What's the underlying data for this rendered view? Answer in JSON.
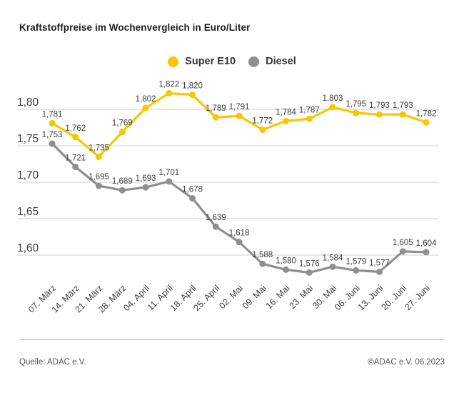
{
  "title": "Kraftstoffpreise im Wochenvergleich in Euro/Liter",
  "legend": {
    "items": [
      {
        "label": "Super E10",
        "color": "#fbc500"
      },
      {
        "label": "Diesel",
        "color": "#8f8f8f"
      }
    ]
  },
  "footer": {
    "source": "Quelle: ADAC e.V.",
    "copyright": "©ADAC e.V. 06.2023"
  },
  "chart_data": {
    "type": "line",
    "title": "Kraftstoffpreise im Wochenvergleich in Euro/Liter",
    "categories": [
      "07. März",
      "14. März",
      "21. März",
      "28. März",
      "04. April",
      "11. April",
      "18. April",
      "25. April",
      "02. Mai",
      "09. Mai",
      "16. Mai",
      "23. Mai",
      "30. Mai",
      "06. Juni",
      "13. Juni",
      "20. Juni",
      "27. Juni"
    ],
    "series": [
      {
        "name": "Super E10",
        "color": "#fbc500",
        "values": [
          1.781,
          1.762,
          1.735,
          1.769,
          1.802,
          1.822,
          1.82,
          1.789,
          1.791,
          1.772,
          1.784,
          1.787,
          1.803,
          1.795,
          1.793,
          1.793,
          1.782
        ]
      },
      {
        "name": "Diesel",
        "color": "#8f8f8f",
        "values": [
          1.753,
          1.721,
          1.695,
          1.689,
          1.693,
          1.701,
          1.678,
          1.639,
          1.618,
          1.588,
          1.58,
          1.576,
          1.584,
          1.579,
          1.577,
          1.605,
          1.604
        ]
      }
    ],
    "ylabel": "Euro/Liter",
    "xlabel": "",
    "y_ticks": [
      1.8,
      1.75,
      1.7,
      1.65,
      1.6
    ],
    "ylim": [
      1.575,
      1.83
    ],
    "grid": true,
    "legend_position": "top-center",
    "value_labels": true,
    "decimal_separator": ","
  }
}
